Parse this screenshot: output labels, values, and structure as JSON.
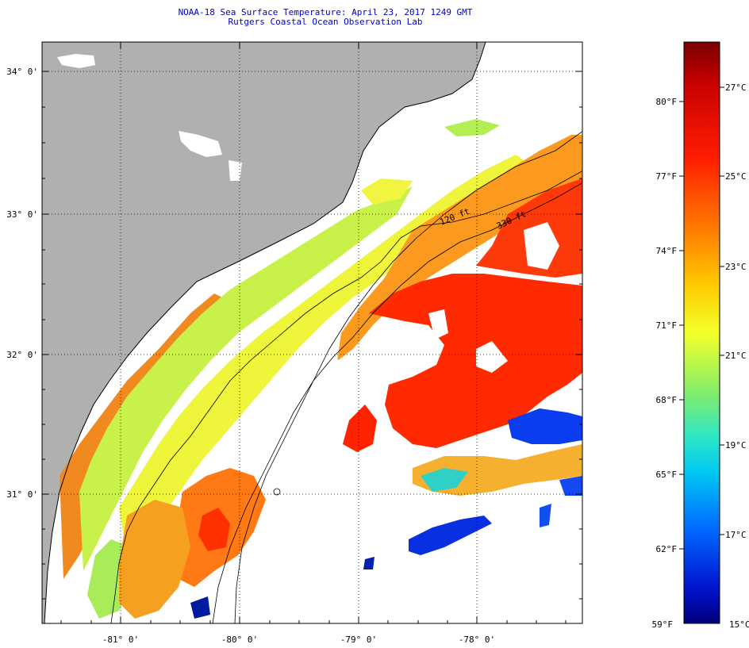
{
  "header": {
    "title": "NOAA-18 Sea Surface Temperature:  April 23, 2017 1249 GMT",
    "subtitle": "Rutgers Coastal Ocean Observation Lab"
  },
  "map": {
    "lat_labels": [
      "34° 0'",
      "33° 0'",
      "32° 0'",
      "31° 0'"
    ],
    "lon_labels": [
      "-81° 0'",
      "-80° 0'",
      "-79° 0'",
      "-78° 0'"
    ],
    "isobath_labels": [
      "120 ft",
      "330 ft"
    ]
  },
  "colorbar": {
    "fahrenheit": [
      "80°F",
      "77°F",
      "74°F",
      "71°F",
      "68°F",
      "65°F",
      "62°F",
      "59°F"
    ],
    "celsius": [
      "27°C",
      "25°C",
      "23°C",
      "21°C",
      "19°C",
      "17°C",
      "15°C"
    ],
    "colors": [
      "#7a0000",
      "#d00000",
      "#ff3c00",
      "#ff8a00",
      "#ffd400",
      "#f2ff30",
      "#9cf060",
      "#30e0c0",
      "#00c8f0",
      "#0070ff",
      "#0010d0",
      "#00007a"
    ]
  }
}
